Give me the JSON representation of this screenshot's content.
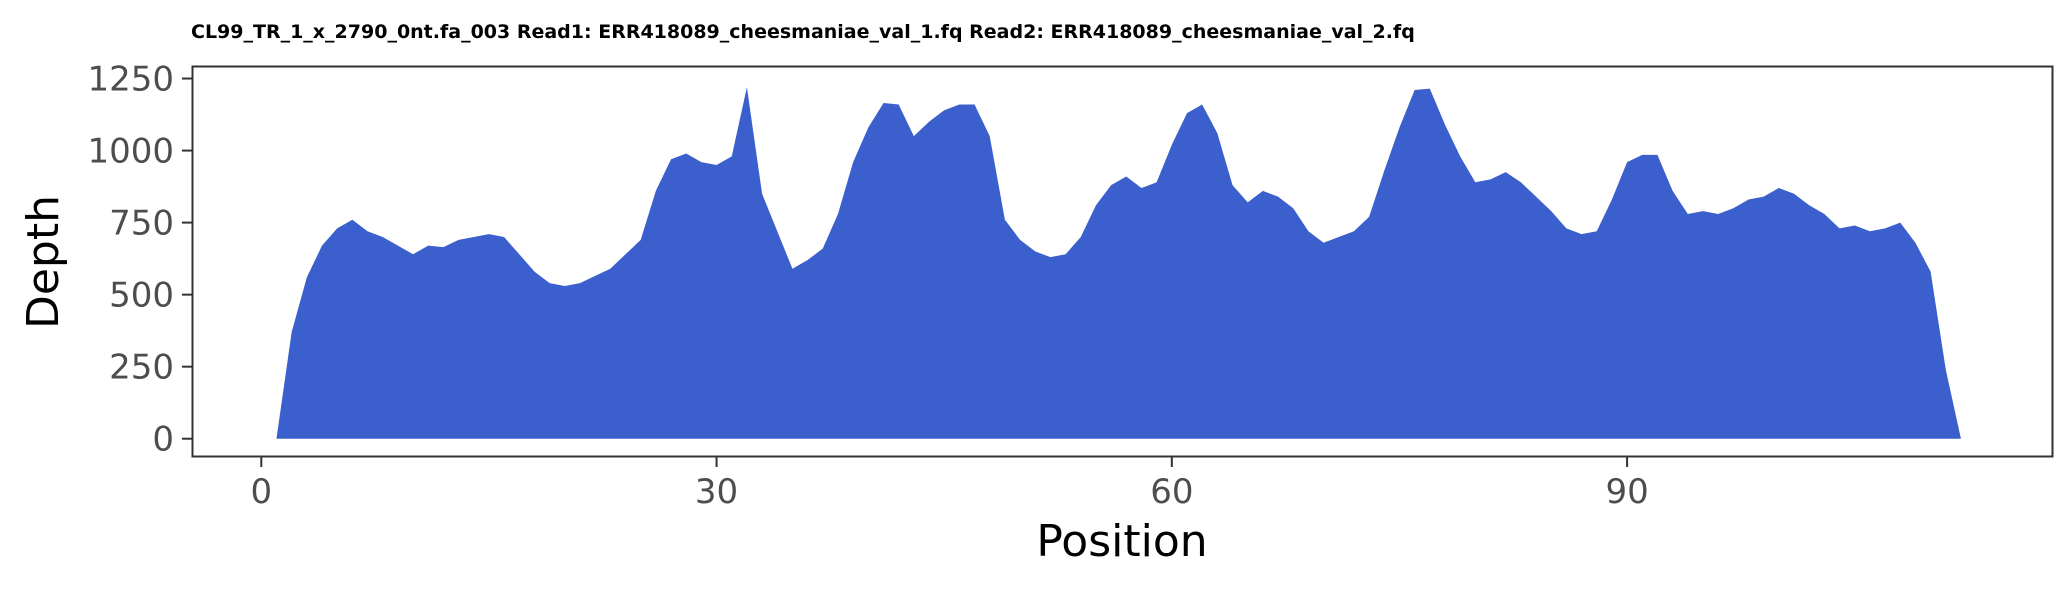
{
  "chart_data": {
    "type": "area",
    "title": "CL99_TR_1_x_2790_0nt.fa_003 Read1: ERR418089_cheesmaniae_val_1.fq Read2: ERR418089_cheesmaniae_val_2.fq",
    "xlabel": "Position",
    "ylabel": "Depth",
    "xlim": [
      -4.5,
      118
    ],
    "ylim": [
      -60,
      1290
    ],
    "x_ticks": [
      0,
      30,
      60,
      90
    ],
    "x_tick_labels": [
      "0",
      "30",
      "60",
      "90"
    ],
    "y_ticks": [
      0,
      250,
      500,
      750,
      1000,
      1250
    ],
    "y_tick_labels": [
      "0",
      "250",
      "500",
      "750",
      "1000",
      "1250"
    ],
    "grid": false,
    "fill_color": "#3b5fcd",
    "series": [
      {
        "x": [
          1,
          2,
          3,
          4,
          5,
          6,
          7,
          8,
          9,
          10,
          11,
          12,
          13,
          14,
          15,
          16,
          17,
          18,
          19,
          20,
          21,
          22,
          23,
          24,
          25,
          26,
          27,
          28,
          29,
          30,
          31,
          32,
          33,
          34,
          35,
          36,
          37,
          38,
          39,
          40,
          41,
          42,
          43,
          44,
          45,
          46,
          47,
          48,
          49,
          50,
          51,
          52,
          53,
          54,
          55,
          56,
          57,
          58,
          59,
          60,
          61,
          62,
          63,
          64,
          65,
          66,
          67,
          68,
          69,
          70,
          71,
          72,
          73,
          74,
          75,
          76,
          77,
          78,
          79,
          80,
          81,
          82,
          83,
          84,
          85,
          86,
          87,
          88,
          89,
          90,
          91,
          92,
          93,
          94,
          95,
          96,
          97,
          98,
          99,
          100,
          101,
          102,
          103,
          104,
          105,
          106,
          107,
          108,
          109,
          110,
          111,
          112,
          113
        ],
        "y": [
          0,
          370,
          560,
          670,
          730,
          760,
          720,
          700,
          670,
          640,
          670,
          665,
          690,
          700,
          710,
          700,
          640,
          580,
          540,
          530,
          540,
          565,
          590,
          640,
          690,
          860,
          970,
          990,
          960,
          950,
          980,
          1220,
          850,
          720,
          590,
          620,
          660,
          780,
          960,
          1080,
          1165,
          1160,
          1050,
          1100,
          1140,
          1160,
          1160,
          1050,
          760,
          690,
          650,
          630,
          640,
          700,
          810,
          880,
          910,
          870,
          890,
          1020,
          1130,
          1160,
          1060,
          880,
          820,
          860,
          840,
          800,
          720,
          680,
          700,
          720,
          770,
          930,
          1080,
          1210,
          1215,
          1090,
          980,
          890,
          900,
          925,
          890,
          840,
          790,
          730,
          710,
          720,
          830,
          960,
          985,
          985,
          860,
          780,
          790,
          780,
          800,
          830,
          840,
          870,
          850,
          810,
          780,
          730,
          740,
          720,
          730,
          750,
          680,
          580,
          240,
          0,
          0
        ]
      }
    ]
  }
}
